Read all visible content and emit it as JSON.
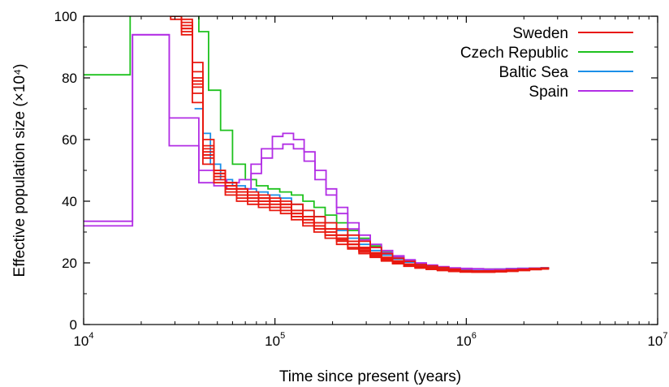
{
  "chart_data": {
    "type": "line",
    "xscale": "log",
    "xlim": [
      10000,
      10000000
    ],
    "ylim": [
      0,
      100
    ],
    "xlabel": "Time since present (years)",
    "ylabel": "Effective population size (×10⁴)",
    "grid": false,
    "legend_position": "top-right",
    "x_ticks": [
      {
        "base": "10",
        "exp": "4",
        "value": 10000
      },
      {
        "base": "10",
        "exp": "5",
        "value": 100000
      },
      {
        "base": "10",
        "exp": "6",
        "value": 1000000
      },
      {
        "base": "10",
        "exp": "7",
        "value": 10000000
      }
    ],
    "y_ticks": [
      "0",
      "20",
      "40",
      "60",
      "80",
      "100"
    ],
    "y_tick_values": [
      0,
      20,
      40,
      60,
      80,
      100
    ],
    "series": [
      {
        "name": "Sweden",
        "color": "#e8180f",
        "step_x": [
          25000,
          28500,
          32500,
          37000,
          42000,
          48000,
          55000,
          63000,
          72000,
          82000,
          94000,
          107000,
          122000,
          140000,
          160000,
          183000,
          210000,
          240000,
          275000,
          315000,
          360000,
          412000,
          472000,
          540000,
          618000,
          707000,
          810000,
          930000,
          1070000,
          1230000,
          1410000,
          1620000,
          1860000,
          2140000,
          2460000
        ],
        "runs": [
          {
            "y": [
              105,
              100,
              97,
              80,
              57,
              49,
              45,
              43,
              42,
              41,
              40,
              39,
              37,
              35,
              33,
              31,
              29,
              27,
              25,
              23,
              21.5,
              20.5,
              19.5,
              19,
              18.5,
              18,
              17.5,
              17.5,
              17.3,
              17.2,
              17.2,
              17.3,
              17.5,
              17.8,
              18
            ]
          },
          {
            "y": [
              103,
              102,
              99,
              85,
              60,
              50,
              46,
              44,
              43,
              42,
              41,
              40,
              39,
              37,
              35,
              33,
              31,
              29,
              27,
              25,
              23,
              21.5,
              20.5,
              19.5,
              19,
              18.5,
              18,
              17.5,
              17.3,
              17.2,
              17.2,
              17.5,
              17.8,
              18,
              18.2
            ]
          },
          {
            "y": [
              104,
              101,
              96,
              78,
              55,
              48,
              44,
              42,
              41,
              40,
              39,
              38,
              36,
              34,
              32,
              30,
              28,
              26,
              24,
              22.5,
              21,
              20,
              19,
              18.5,
              18,
              17.6,
              17.3,
              17.1,
              17,
              17,
              17.1,
              17.3,
              17.6,
              17.9,
              18.2
            ]
          },
          {
            "y": [
              102,
              100,
              95,
              75,
              54,
              47,
              43,
              41,
              40,
              39,
              38,
              37,
              35,
              33,
              31,
              29,
              27,
              25,
              23.5,
              22,
              20.8,
              19.8,
              19,
              18.4,
              17.9,
              17.5,
              17.2,
              17,
              17,
              17,
              17.2,
              17.5,
              17.8,
              18.1,
              18.3
            ]
          },
          {
            "y": [
              105,
              103,
              98,
              82,
              58,
              50,
              46,
              44,
              42,
              41,
              40,
              38,
              36,
              34,
              32,
              30,
              28,
              26,
              24,
              22.5,
              21.2,
              20.2,
              19.3,
              18.7,
              18.2,
              17.8,
              17.5,
              17.3,
              17.2,
              17.2,
              17.3,
              17.5,
              17.7,
              17.9,
              18.1
            ]
          },
          {
            "y": [
              101,
              99,
              94,
              72,
              52,
              46,
              42,
              40,
              39,
              38,
              37,
              36,
              34,
              32,
              30,
              28,
              26,
              24.5,
              23,
              21.8,
              20.6,
              19.7,
              18.9,
              18.3,
              17.9,
              17.6,
              17.3,
              17.1,
              17,
              17,
              17.1,
              17.4,
              17.7,
              18,
              18.2
            ]
          },
          {
            "y": [
              104,
              102,
              97,
              79,
              56,
              49,
              45,
              43,
              42,
              41,
              40,
              39,
              37,
              35,
              33,
              31,
              29,
              27,
              25,
              23.3,
              21.8,
              20.6,
              19.6,
              18.9,
              18.4,
              18,
              17.7,
              17.5,
              17.4,
              17.4,
              17.5,
              17.7,
              17.9,
              18.1,
              18.3
            ]
          },
          {
            "y": [
              103,
              100,
              96,
              77,
              55,
              48,
              44,
              42,
              41,
              40,
              38,
              37,
              35,
              33,
              31,
              29,
              27.5,
              26,
              24.5,
              23,
              21.6,
              20.4,
              19.4,
              18.7,
              18.2,
              17.8,
              17.5,
              17.3,
              17.2,
              17.2,
              17.4,
              17.6,
              17.9,
              18.1,
              18.3
            ]
          }
        ]
      },
      {
        "name": "Czech Republic",
        "color": "#1ec21e",
        "step_x": [
          10000,
          17500,
          22000,
          30000,
          40000,
          45000,
          52000,
          60000,
          70000,
          80000,
          92000,
          106000,
          122000,
          140000,
          160000,
          183000,
          210000,
          240000,
          275000,
          315000,
          360000,
          412000,
          472000,
          540000,
          618000,
          707000,
          810000,
          930000,
          1070000,
          1230000,
          1410000,
          1620000,
          1860000,
          2140000,
          2460000
        ],
        "runs": [
          {
            "y": [
              81,
              105,
              105,
              102,
              95,
              76,
              63,
              52,
              47,
              45,
              44,
              43,
              42,
              40,
              38,
              35.5,
              33,
              30.5,
              28,
              25.5,
              23.5,
              22,
              20.8,
              19.8,
              19.1,
              18.6,
              18.3,
              18.1,
              18,
              18,
              18,
              18.1,
              18.2,
              18.3,
              18.4
            ]
          }
        ]
      },
      {
        "name": "Baltic Sea",
        "color": "#1b8fe8",
        "step_x": [
          38000,
          42000,
          46000,
          52000,
          60000,
          70000,
          80000,
          92000,
          106000,
          122000,
          140000,
          160000,
          183000,
          210000,
          240000,
          275000,
          315000,
          360000,
          412000,
          472000,
          540000,
          618000,
          707000,
          810000,
          930000,
          1070000,
          1230000,
          1410000,
          1620000,
          1860000,
          2140000,
          2460000
        ],
        "runs": [
          {
            "y": [
              70,
              62,
              52,
              47,
              45,
              44,
              43,
              42,
              41,
              39,
              37,
              35,
              33,
              30.5,
              28,
              26,
              24,
              22.5,
              21.2,
              20.2,
              19.4,
              18.8,
              18.4,
              18.1,
              18,
              17.9,
              17.9,
              18,
              18.1,
              18.2,
              18.3,
              18.4
            ]
          }
        ]
      },
      {
        "name": "Spain",
        "color": "#b22ee5",
        "step_x": [
          10000,
          18000,
          28000,
          40000,
          48000,
          56000,
          65000,
          75000,
          85000,
          97000,
          110000,
          125000,
          142000,
          162000,
          185000,
          210000,
          240000,
          275000,
          315000,
          360000,
          412000,
          472000,
          540000,
          618000,
          707000,
          810000,
          930000,
          1070000,
          1230000,
          1410000,
          1620000,
          1860000,
          2140000,
          2460000
        ],
        "runs": [
          {
            "y": [
              32,
              94,
              67,
              50,
              47,
              46,
              47,
              52,
              57,
              61,
              62,
              60,
              56,
              50,
              44,
              38,
              33,
              29,
              26,
              24,
              22.3,
              21,
              20,
              19.3,
              18.8,
              18.4,
              18.2,
              18.1,
              18,
              18,
              18.1,
              18.2,
              18.3,
              18.4
            ]
          },
          {
            "y": [
              33.5,
              94,
              58,
              46,
              45,
              44,
              44,
              49,
              54,
              57,
              58.5,
              57,
              53,
              47,
              42,
              36,
              31,
              27.5,
              25,
              23.3,
              21.8,
              20.6,
              19.7,
              19.1,
              18.6,
              18.3,
              18.1,
              18,
              17.9,
              17.9,
              18,
              18.1,
              18.2,
              18.3
            ]
          }
        ]
      }
    ]
  }
}
